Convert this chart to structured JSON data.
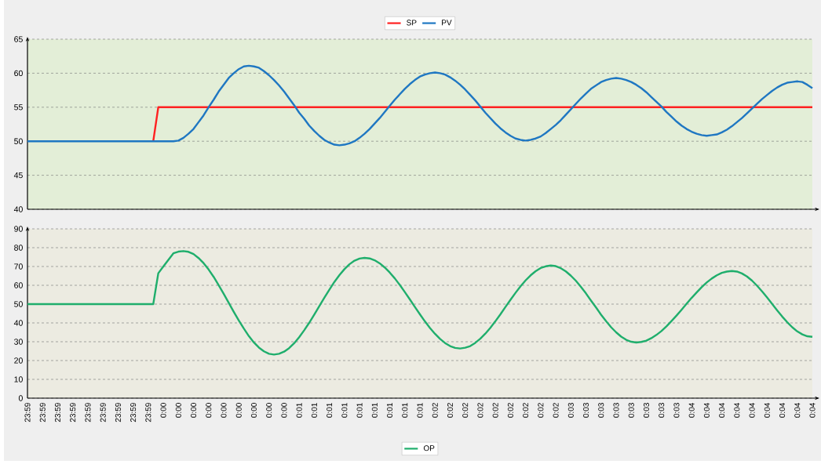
{
  "chart_data": [
    {
      "type": "line",
      "ylim": [
        40,
        65
      ],
      "yticks": [
        40,
        45,
        50,
        55,
        60,
        65
      ],
      "grid": "y",
      "legend": "top",
      "tick_labels": "y",
      "categories": [
        null,
        null,
        null,
        null,
        null,
        null,
        null,
        null,
        null,
        null,
        null,
        null,
        null,
        null,
        null,
        null,
        null,
        null,
        null,
        null,
        null,
        null,
        null,
        null,
        null,
        null,
        null,
        null,
        null,
        null,
        null,
        null,
        null,
        null,
        null,
        null,
        null,
        null,
        null,
        null,
        null,
        null,
        null,
        null,
        null,
        null,
        null,
        null,
        null,
        null,
        null,
        null,
        null,
        null,
        null,
        null,
        null,
        null,
        null,
        null,
        null,
        null,
        null,
        null,
        null,
        null,
        null,
        null,
        null,
        null,
        null,
        null,
        null,
        null,
        null,
        null,
        null,
        null,
        null,
        null,
        null,
        null,
        null,
        null,
        null,
        null,
        null,
        null,
        null,
        null,
        null,
        null,
        null,
        null,
        null,
        null,
        null,
        null,
        null,
        null,
        null,
        null,
        null,
        null,
        null,
        null,
        null,
        null,
        null,
        null,
        null,
        null,
        null,
        null,
        null,
        null,
        null,
        null,
        null,
        null,
        null,
        null,
        null,
        null,
        null,
        null,
        null,
        null,
        null,
        null,
        null,
        null,
        null,
        null,
        null,
        null,
        null,
        null,
        null,
        null,
        null,
        null,
        null,
        null,
        null,
        null,
        null,
        null,
        null,
        null,
        null,
        null,
        null,
        null,
        null,
        null,
        null
      ],
      "series": [
        {
          "name": "SP",
          "color": "#ff2121",
          "values": [
            null,
            null,
            null,
            null,
            null,
            null,
            null,
            null,
            null,
            null,
            null,
            null,
            null,
            null,
            null,
            null,
            null,
            null,
            null,
            null,
            null,
            null,
            null,
            null,
            null,
            50,
            55,
            55,
            55,
            55,
            55,
            55,
            55,
            55,
            55,
            55,
            55,
            55,
            55,
            55,
            55,
            55,
            55,
            55,
            55,
            55,
            55,
            55,
            55,
            55,
            55,
            55,
            55,
            55,
            55,
            55,
            55,
            55,
            55,
            55,
            55,
            55,
            55,
            55,
            55,
            55,
            55,
            55,
            55,
            55,
            55,
            55,
            55,
            55,
            55,
            55,
            55,
            55,
            55,
            55,
            55,
            55,
            55,
            55,
            55,
            55,
            55,
            55,
            55,
            55,
            55,
            55,
            55,
            55,
            55,
            55,
            55,
            55,
            55,
            55,
            55,
            55,
            55,
            55,
            55,
            55,
            55,
            55,
            55,
            55,
            55,
            55,
            55,
            55,
            55,
            55,
            55,
            55,
            55,
            55,
            55,
            55,
            55,
            55,
            55,
            55,
            55,
            55,
            55,
            55,
            55,
            55,
            55,
            55,
            55,
            55,
            55,
            55,
            55,
            55,
            55,
            55,
            55,
            55,
            55,
            55,
            55,
            55,
            55,
            55,
            55,
            55,
            55,
            55,
            55,
            55,
            55
          ]
        },
        {
          "name": "PV",
          "color": "#1f77c2",
          "values": [
            50,
            50,
            50,
            50,
            50,
            50,
            50,
            50,
            50,
            50,
            50,
            50,
            50,
            50,
            50,
            50,
            50,
            50,
            50,
            50,
            50,
            50,
            50,
            50,
            50,
            50,
            50,
            50,
            50,
            50,
            50.1,
            50.5,
            51.1,
            51.8,
            52.8,
            53.8,
            55.0,
            56.1,
            57.3,
            58.3,
            59.3,
            60.0,
            60.6,
            61.0,
            61.1,
            61.0,
            60.8,
            60.3,
            59.7,
            59.0,
            58.2,
            57.3,
            56.3,
            55.3,
            54.2,
            53.3,
            52.3,
            51.5,
            50.8,
            50.2,
            49.8,
            49.5,
            49.4,
            49.5,
            49.7,
            50.0,
            50.5,
            51.1,
            51.8,
            52.6,
            53.4,
            54.3,
            55.2,
            56.1,
            56.9,
            57.7,
            58.4,
            59.0,
            59.5,
            59.8,
            60.0,
            60.1,
            60.0,
            59.8,
            59.4,
            58.9,
            58.3,
            57.6,
            56.8,
            56.0,
            55.1,
            54.2,
            53.4,
            52.6,
            51.9,
            51.3,
            50.8,
            50.4,
            50.2,
            50.1,
            50.2,
            50.4,
            50.7,
            51.2,
            51.8,
            52.4,
            53.1,
            53.9,
            54.7,
            55.5,
            56.3,
            57.0,
            57.7,
            58.2,
            58.7,
            59.0,
            59.2,
            59.3,
            59.2,
            59.0,
            58.7,
            58.3,
            57.8,
            57.2,
            56.5,
            55.8,
            55.1,
            54.3,
            53.6,
            52.9,
            52.3,
            51.8,
            51.4,
            51.1,
            50.9,
            50.8,
            50.9,
            51.0,
            51.3,
            51.7,
            52.2,
            52.8,
            53.4,
            54.1,
            54.8,
            55.5,
            56.2,
            56.8,
            57.4,
            57.9,
            58.3,
            58.6,
            58.7,
            58.8,
            58.7,
            58.3,
            57.8
          ]
        }
      ]
    },
    {
      "type": "line",
      "ylim": [
        0,
        90
      ],
      "yticks": [
        0,
        10,
        20,
        30,
        40,
        50,
        60,
        70,
        80,
        90
      ],
      "grid": "y",
      "legend": "bottom",
      "categories": [
        "23:59",
        null,
        null,
        "23:59",
        null,
        null,
        "23:59",
        null,
        null,
        "23:59",
        null,
        null,
        "23:59",
        null,
        null,
        "23:59",
        null,
        null,
        "23:59",
        null,
        null,
        "23:59",
        null,
        null,
        "23:59",
        null,
        null,
        "0:00",
        null,
        null,
        "0:00",
        null,
        null,
        "0:00",
        null,
        null,
        "0:00",
        null,
        null,
        "0:00",
        null,
        null,
        "0:00",
        null,
        null,
        "0:00",
        null,
        null,
        "0:00",
        null,
        null,
        "0:00",
        null,
        null,
        "0:01",
        null,
        null,
        "0:01",
        null,
        null,
        "0:01",
        null,
        null,
        "0:01",
        null,
        null,
        "0:01",
        null,
        null,
        "0:01",
        null,
        null,
        "0:01",
        null,
        null,
        "0:01",
        null,
        null,
        "0:01",
        null,
        null,
        "0:02",
        null,
        null,
        "0:02",
        null,
        null,
        "0:02",
        null,
        null,
        "0:02",
        null,
        null,
        "0:02",
        null,
        null,
        "0:02",
        null,
        null,
        "0:02",
        null,
        null,
        "0:02",
        null,
        null,
        "0:02",
        null,
        null,
        "0:03",
        null,
        null,
        "0:03",
        null,
        null,
        "0:03",
        null,
        null,
        "0:03",
        null,
        null,
        "0:03",
        null,
        null,
        "0:03",
        null,
        null,
        "0:03",
        null,
        null,
        "0:03",
        null,
        null,
        "0:04",
        null,
        null,
        "0:04",
        null,
        null,
        "0:04",
        null,
        null,
        "0:04",
        null,
        null,
        "0:04",
        null,
        null,
        "0:04",
        null,
        null,
        "0:04",
        null,
        null,
        "0:04",
        null,
        null,
        "0:04"
      ],
      "series": [
        {
          "name": "OP",
          "color": "#1fae6c",
          "values": [
            50,
            50,
            50,
            50,
            50,
            50,
            50,
            50,
            50,
            50,
            50,
            50,
            50,
            50,
            50,
            50,
            50,
            50,
            50,
            50,
            50,
            50,
            50,
            50,
            50,
            50,
            66.4,
            70.0,
            73.5,
            77.0,
            77.9,
            78.2,
            77.8,
            76.6,
            74.5,
            71.8,
            68.4,
            64.5,
            60.1,
            55.5,
            50.7,
            45.9,
            41.3,
            37.0,
            33.0,
            29.6,
            26.9,
            24.9,
            23.6,
            23.2,
            23.6,
            24.7,
            26.6,
            29.2,
            32.4,
            36.1,
            40.1,
            44.4,
            48.9,
            53.4,
            57.7,
            61.8,
            65.4,
            68.6,
            71.2,
            73.1,
            74.2,
            74.6,
            74.3,
            73.3,
            71.7,
            69.5,
            66.8,
            63.7,
            60.2,
            56.4,
            52.5,
            48.5,
            44.6,
            40.8,
            37.3,
            34.2,
            31.5,
            29.3,
            27.7,
            26.7,
            26.4,
            26.8,
            27.7,
            29.4,
            31.6,
            34.3,
            37.4,
            40.9,
            44.6,
            48.5,
            52.3,
            56.0,
            59.5,
            62.6,
            65.3,
            67.5,
            69.2,
            70.1,
            70.5,
            70.2,
            69.1,
            67.4,
            65.1,
            62.4,
            59.2,
            55.7,
            51.9,
            48.2,
            44.4,
            40.9,
            37.7,
            35.0,
            32.7,
            31.0,
            30.0,
            29.6,
            29.9,
            30.6,
            31.9,
            33.6,
            35.7,
            38.2,
            41.0,
            43.9,
            47.0,
            50.2,
            53.3,
            56.2,
            59.0,
            61.5,
            63.6,
            65.3,
            66.6,
            67.3,
            67.6,
            67.3,
            66.3,
            64.7,
            62.5,
            59.8,
            56.8,
            53.5,
            50.1,
            46.7,
            43.4,
            40.4,
            37.7,
            35.5,
            33.9,
            32.9,
            32.6
          ]
        }
      ]
    }
  ]
}
